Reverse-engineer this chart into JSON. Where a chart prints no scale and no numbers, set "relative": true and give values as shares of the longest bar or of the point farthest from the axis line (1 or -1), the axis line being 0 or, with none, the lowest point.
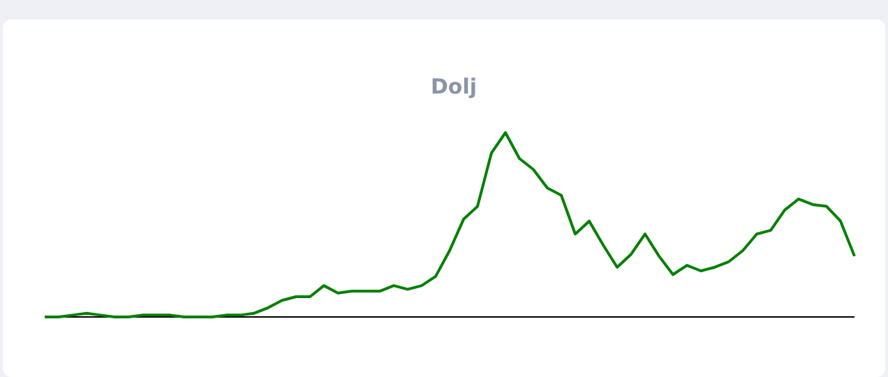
{
  "chart_data": {
    "type": "line",
    "title": "Dolj",
    "relative": true,
    "categories": [
      null,
      null,
      null,
      null,
      null,
      null,
      null,
      null,
      null,
      null,
      null,
      null,
      null,
      null,
      null,
      null,
      null,
      null,
      null,
      null,
      null,
      null,
      null,
      null,
      null,
      null,
      null,
      null,
      null,
      null,
      null,
      null,
      null,
      null,
      null,
      null,
      null,
      null,
      null,
      null,
      null,
      null,
      null,
      null,
      null,
      null,
      null,
      null,
      null,
      null,
      null,
      null,
      null,
      null,
      null,
      null,
      null,
      null,
      null
    ],
    "series": [
      {
        "color": "#008000",
        "values": [
          0,
          0,
          0.01,
          0.02,
          0.01,
          0,
          0,
          0.01,
          0.01,
          0.01,
          0,
          0,
          0,
          0.01,
          0.01,
          0.02,
          0.05,
          0.09,
          0.11,
          0.11,
          0.17,
          0.13,
          0.14,
          0.14,
          0.14,
          0.17,
          0.15,
          0.17,
          0.22,
          0.36,
          0.53,
          0.6,
          0.89,
          1,
          0.86,
          0.8,
          0.7,
          0.66,
          0.45,
          0.52,
          0.39,
          0.27,
          0.34,
          0.45,
          0.33,
          0.23,
          0.28,
          0.25,
          0.27,
          0.3,
          0.36,
          0.45,
          0.47,
          0.58,
          0.64,
          0.61,
          0.6,
          0.52,
          0.33
        ]
      }
    ]
  }
}
